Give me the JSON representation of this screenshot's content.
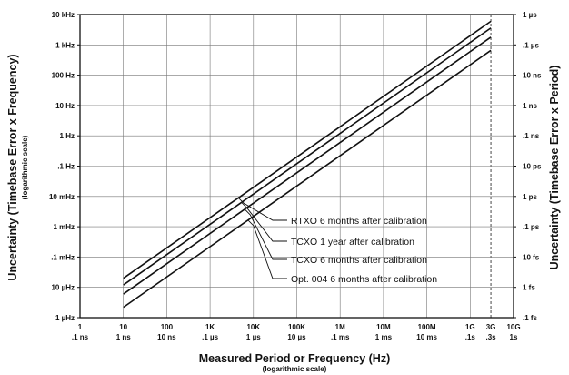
{
  "chart_data": {
    "type": "line",
    "xscale": "log",
    "yscale": "log",
    "xlim": [
      1,
      10000000000
    ],
    "ylim": [
      1e-06,
      10000
    ],
    "grid": true,
    "xlabel": "Measured Period or Frequency (Hz)",
    "xlabel_sub": "(logarithmic scale)",
    "ylabel": "Uncertainty (Timebase Error x Frequency)",
    "ylabel_sub": "(logarithmic scale)",
    "y2label": "Uncertainty (Timebase Error x Period)",
    "x_ticks": [
      {
        "value": 1,
        "label": "1",
        "label2": ".1 ns"
      },
      {
        "value": 10,
        "label": "10",
        "label2": "1 ns"
      },
      {
        "value": 100,
        "label": "100",
        "label2": "10 ns"
      },
      {
        "value": 1000,
        "label": "1K",
        "label2": ".1 µs"
      },
      {
        "value": 10000,
        "label": "10K",
        "label2": "1 µs"
      },
      {
        "value": 100000,
        "label": "100K",
        "label2": "10 µs"
      },
      {
        "value": 1000000,
        "label": "1M",
        "label2": ".1 ms"
      },
      {
        "value": 10000000,
        "label": "10M",
        "label2": "1 ms"
      },
      {
        "value": 100000000,
        "label": "100M",
        "label2": "10 ms"
      },
      {
        "value": 1000000000,
        "label": "1G",
        "label2": ".1s"
      },
      {
        "value": 3000000000,
        "label": "3G",
        "label2": ".3s"
      },
      {
        "value": 10000000000,
        "label": "10G",
        "label2": "1s"
      }
    ],
    "y_ticks": [
      {
        "value": 10000,
        "label": "10 kHz"
      },
      {
        "value": 1000,
        "label": "1 kHz"
      },
      {
        "value": 100,
        "label": "100 Hz"
      },
      {
        "value": 10,
        "label": "10 Hz"
      },
      {
        "value": 1,
        "label": "1 Hz"
      },
      {
        "value": 0.1,
        "label": ".1 Hz"
      },
      {
        "value": 0.01,
        "label": "10 mHz"
      },
      {
        "value": 0.001,
        "label": "1 mHz"
      },
      {
        "value": 0.0001,
        "label": ".1 mHz"
      },
      {
        "value": 1e-05,
        "label": "10 µHz"
      },
      {
        "value": 1e-06,
        "label": "1 µHz"
      }
    ],
    "y2_ticks": [
      {
        "value": 10000,
        "label": "1 µs"
      },
      {
        "value": 1000,
        "label": ".1 µs"
      },
      {
        "value": 100,
        "label": "10 ns"
      },
      {
        "value": 10,
        "label": "1 ns"
      },
      {
        "value": 1,
        "label": ".1 ns"
      },
      {
        "value": 0.1,
        "label": "10 ps"
      },
      {
        "value": 0.01,
        "label": "1 ps"
      },
      {
        "value": 0.001,
        "label": ".1 ps"
      },
      {
        "value": 0.0001,
        "label": "10 fs"
      },
      {
        "value": 1e-05,
        "label": "1 fs"
      },
      {
        "value": 1e-06,
        "label": ".1 fs"
      }
    ],
    "special_gridline_x": 3000000000,
    "series": [
      {
        "name": "RTXO 6 months after calibration",
        "x": [
          10,
          3000000000
        ],
        "y": [
          2e-05,
          6000
        ]
      },
      {
        "name": "TCXO 1 year after calibration",
        "x": [
          10,
          3000000000
        ],
        "y": [
          1.2e-05,
          3600
        ]
      },
      {
        "name": "TCXO 6 months after calibration",
        "x": [
          10,
          3000000000
        ],
        "y": [
          6e-06,
          1800
        ]
      },
      {
        "name": "Opt. 004 6 months after calibration",
        "x": [
          10,
          3000000000
        ],
        "y": [
          2.2e-06,
          660
        ]
      }
    ]
  }
}
